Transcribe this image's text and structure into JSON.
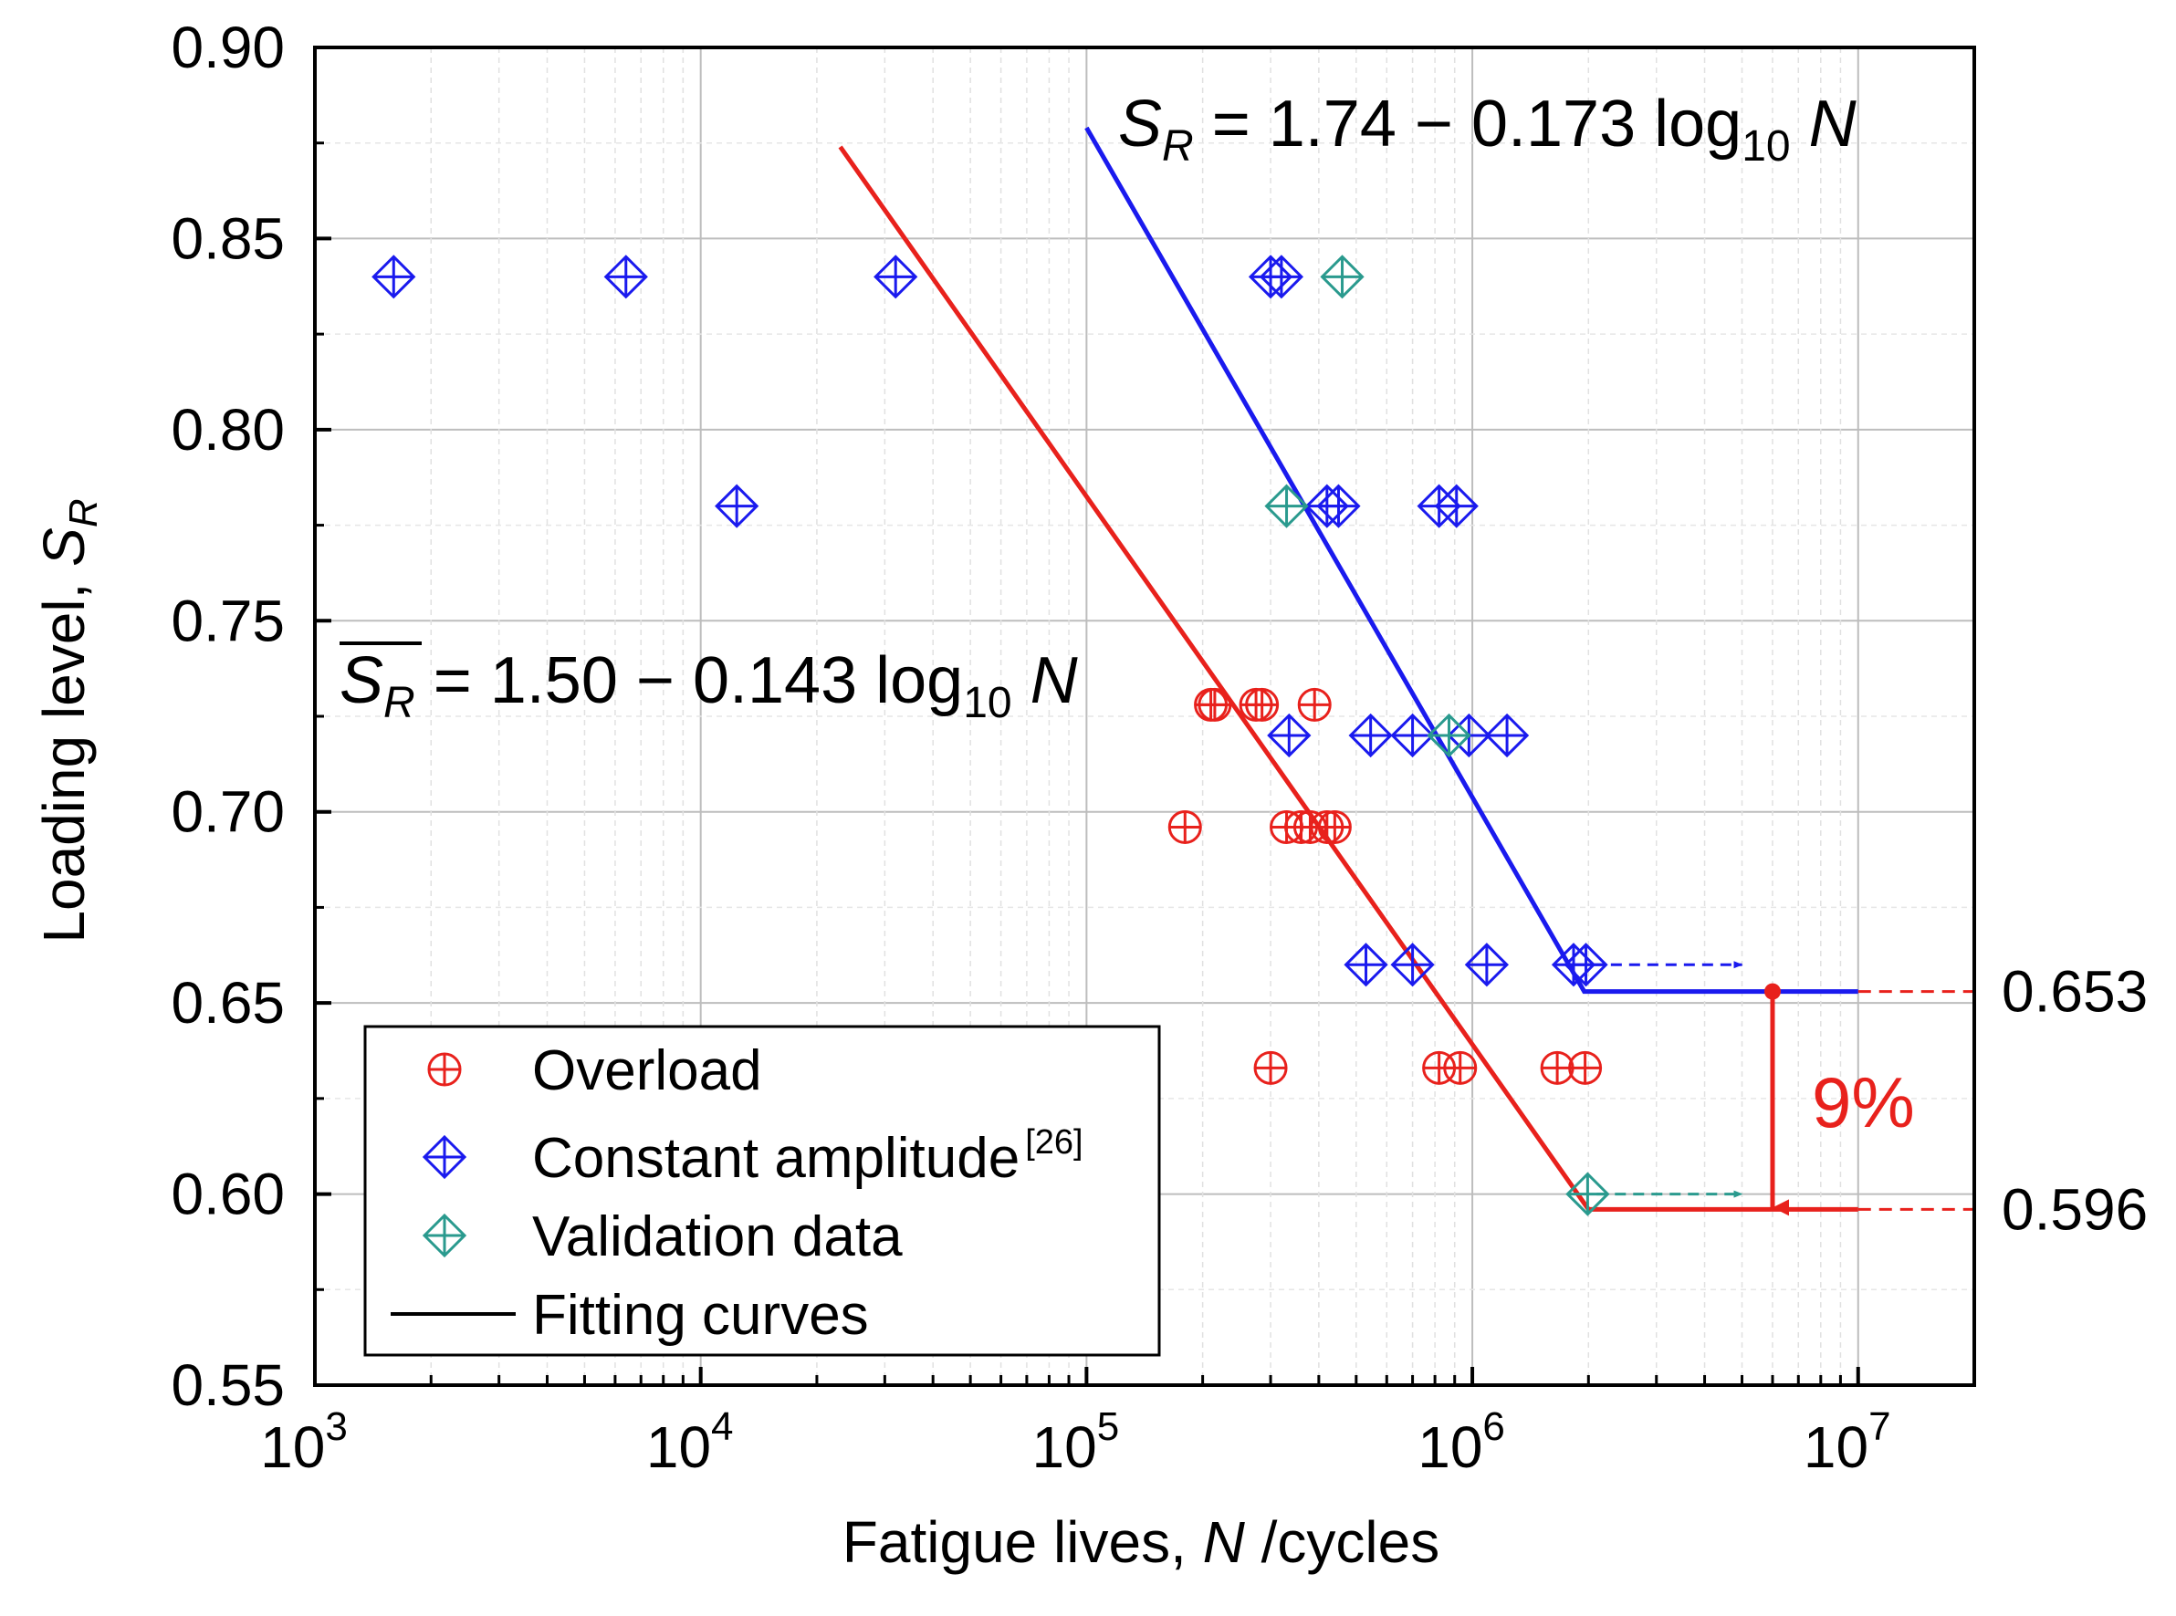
{
  "chart_data": {
    "type": "scatter",
    "xlabel": "Fatigue lives, N /cycles",
    "ylabel": "Loading level, S_R",
    "x_scale": "log10",
    "xlim": [
      1000,
      20000000
    ],
    "ylim": [
      0.55,
      0.9
    ],
    "y_ticks": [
      "0.55",
      "0.60",
      "0.65",
      "0.70",
      "0.75",
      "0.80",
      "0.85",
      "0.90"
    ],
    "x_ticks": [
      {
        "base": "10",
        "exp": "3",
        "value": 1000
      },
      {
        "base": "10",
        "exp": "4",
        "value": 10000
      },
      {
        "base": "10",
        "exp": "5",
        "value": 100000
      },
      {
        "base": "10",
        "exp": "6",
        "value": 1000000
      },
      {
        "base": "10",
        "exp": "7",
        "value": 10000000
      }
    ],
    "grid": true,
    "legend": {
      "placement": "bottom-left",
      "entries": [
        {
          "label": "Overload",
          "sup": "",
          "color": "#e8211c",
          "marker": "circle-plus"
        },
        {
          "label": "Constant amplitude",
          "sup": "[26]",
          "color": "#1a1aee",
          "marker": "diamond-plus"
        },
        {
          "label": "Validation data",
          "sup": "",
          "color": "#2a9a8e",
          "marker": "diamond-plus"
        },
        {
          "label": "Fitting curves",
          "sup": "",
          "color": "#000000",
          "marker": "line"
        }
      ]
    },
    "series": [
      {
        "name": "Overload",
        "color": "#e8211c",
        "marker": "circle-plus",
        "points": [
          [
            180000,
            0.696
          ],
          [
            330000,
            0.696
          ],
          [
            360000,
            0.696
          ],
          [
            380000,
            0.696
          ],
          [
            420000,
            0.696
          ],
          [
            440000,
            0.696
          ],
          [
            210000,
            0.728
          ],
          [
            215000,
            0.728
          ],
          [
            275000,
            0.728
          ],
          [
            285000,
            0.728
          ],
          [
            390000,
            0.728
          ],
          [
            300000,
            0.633
          ],
          [
            820000,
            0.633
          ],
          [
            930000,
            0.633
          ],
          [
            1660000,
            0.633
          ],
          [
            1960000,
            0.633
          ]
        ]
      },
      {
        "name": "Constant amplitude",
        "color": "#1a1aee",
        "marker": "diamond-plus",
        "points": [
          [
            1600,
            0.84
          ],
          [
            6400,
            0.84
          ],
          [
            32000,
            0.84
          ],
          [
            300000,
            0.84
          ],
          [
            320000,
            0.84
          ],
          [
            12400,
            0.78
          ],
          [
            420000,
            0.78
          ],
          [
            450000,
            0.78
          ],
          [
            820000,
            0.78
          ],
          [
            910000,
            0.78
          ],
          [
            335000,
            0.72
          ],
          [
            545000,
            0.72
          ],
          [
            700000,
            0.72
          ],
          [
            980000,
            0.72
          ],
          [
            1230000,
            0.72
          ],
          [
            530000,
            0.66
          ],
          [
            700000,
            0.66
          ],
          [
            1090000,
            0.66
          ],
          [
            1830000,
            0.66
          ],
          [
            1970000,
            0.66
          ]
        ]
      },
      {
        "name": "Validation data",
        "color": "#2a9a8e",
        "marker": "diamond-plus",
        "points": [
          [
            460000,
            0.84
          ],
          [
            330000,
            0.78
          ],
          [
            870000,
            0.72
          ],
          [
            1990000,
            0.6
          ]
        ]
      }
    ],
    "fits": [
      {
        "name": "Constant amplitude fit",
        "color": "#1a1aee",
        "equation_lhs": "S",
        "equation_sub": "R",
        "equation_rhs": " = 1.74 − 0.173 log",
        "equation_log_sub": "10",
        "equation_var": " N",
        "points": [
          [
            100000,
            0.879
          ],
          [
            1950000,
            0.653
          ],
          [
            10000000,
            0.653
          ]
        ],
        "extension_to": 20000000,
        "arrow_from": [
          2050000,
          0.66
        ],
        "arrow_to": [
          5000000,
          0.66
        ]
      },
      {
        "name": "Overload fit",
        "color": "#e8211c",
        "equation_lhs": "S",
        "equation_sub": "R",
        "equation_rhs": " = 1.50 − 0.143 log",
        "equation_log_sub": "10",
        "equation_var": " N",
        "points": [
          [
            23000,
            0.874
          ],
          [
            2000000,
            0.596
          ],
          [
            10000000,
            0.596
          ]
        ],
        "extension_to": 20000000,
        "arrow_from": [
          2100000,
          0.6
        ],
        "arrow_to": [
          5000000,
          0.6
        ]
      }
    ],
    "annotations": {
      "upper_level": "0.653",
      "upper_value": 0.653,
      "lower_level": "0.596",
      "lower_value": 0.596,
      "gap_label": "9%",
      "gap_x": 6000000
    }
  }
}
